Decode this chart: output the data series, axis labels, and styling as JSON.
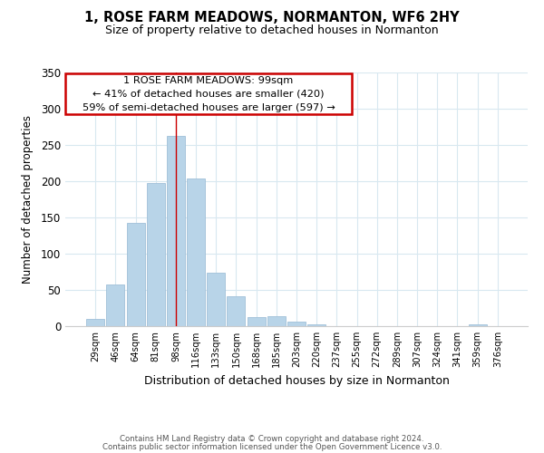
{
  "title": "1, ROSE FARM MEADOWS, NORMANTON, WF6 2HY",
  "subtitle": "Size of property relative to detached houses in Normanton",
  "xlabel": "Distribution of detached houses by size in Normanton",
  "ylabel": "Number of detached properties",
  "bar_color": "#b8d4e8",
  "bar_edge_color": "#a0c0d8",
  "background_color": "#ffffff",
  "grid_color": "#d8e8f0",
  "bin_labels": [
    "29sqm",
    "46sqm",
    "64sqm",
    "81sqm",
    "98sqm",
    "116sqm",
    "133sqm",
    "150sqm",
    "168sqm",
    "185sqm",
    "203sqm",
    "220sqm",
    "237sqm",
    "255sqm",
    "272sqm",
    "289sqm",
    "307sqm",
    "324sqm",
    "341sqm",
    "359sqm",
    "376sqm"
  ],
  "bar_heights": [
    10,
    57,
    143,
    198,
    262,
    204,
    74,
    41,
    13,
    14,
    6,
    2,
    0,
    0,
    0,
    0,
    0,
    0,
    0,
    2,
    0
  ],
  "ylim": [
    0,
    350
  ],
  "yticks": [
    0,
    50,
    100,
    150,
    200,
    250,
    300,
    350
  ],
  "annotation_text_line1": "1 ROSE FARM MEADOWS: 99sqm",
  "annotation_text_line2": "← 41% of detached houses are smaller (420)",
  "annotation_text_line3": "59% of semi-detached houses are larger (597) →",
  "marker_bin_index": 4,
  "footer_line1": "Contains HM Land Registry data © Crown copyright and database right 2024.",
  "footer_line2": "Contains public sector information licensed under the Open Government Licence v3.0."
}
